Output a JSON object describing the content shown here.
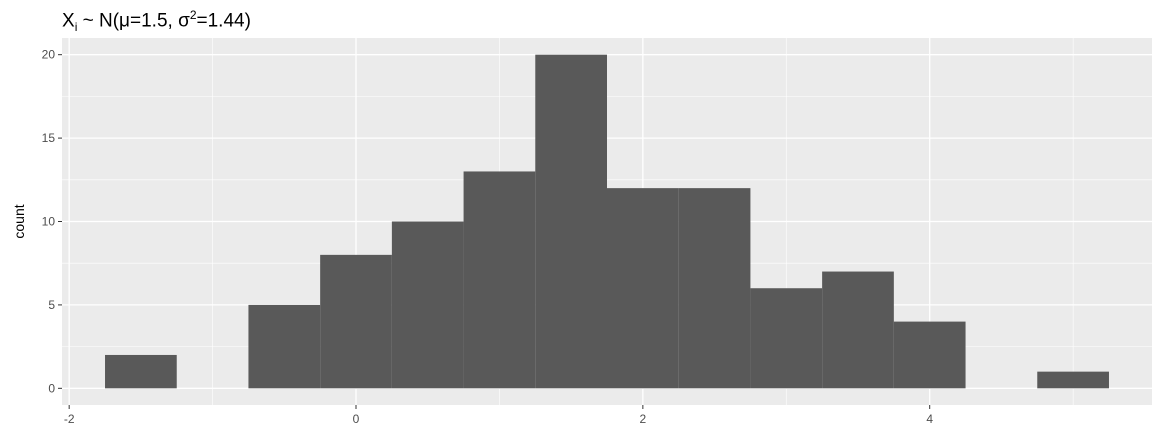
{
  "chart_data": {
    "type": "bar",
    "title": {
      "base": "X",
      "sub": "i",
      "middle": " ~ N(μ=1.5, σ",
      "sup": "2",
      "end": "=1.44)"
    },
    "xlabel": "",
    "ylabel": "count",
    "bin_width": 0.5,
    "bins": [
      {
        "x_start": -1.75,
        "x_end": -1.25,
        "count": 2
      },
      {
        "x_start": -0.75,
        "x_end": -0.25,
        "count": 5
      },
      {
        "x_start": -0.25,
        "x_end": 0.25,
        "count": 8
      },
      {
        "x_start": 0.25,
        "x_end": 0.75,
        "count": 10
      },
      {
        "x_start": 0.75,
        "x_end": 1.25,
        "count": 13
      },
      {
        "x_start": 1.25,
        "x_end": 1.75,
        "count": 20
      },
      {
        "x_start": 1.75,
        "x_end": 2.25,
        "count": 12
      },
      {
        "x_start": 2.25,
        "x_end": 2.75,
        "count": 12
      },
      {
        "x_start": 2.75,
        "x_end": 3.25,
        "count": 6
      },
      {
        "x_start": 3.25,
        "x_end": 3.75,
        "count": 7
      },
      {
        "x_start": 3.75,
        "x_end": 4.25,
        "count": 4
      },
      {
        "x_start": 4.75,
        "x_end": 5.25,
        "count": 1
      }
    ],
    "xlim": [
      -2.05,
      5.55
    ],
    "ylim": [
      -1,
      21
    ],
    "x_ticks": [
      -2,
      0,
      2,
      4
    ],
    "x_tick_labels": [
      "-2",
      "0",
      "2",
      "4"
    ],
    "y_ticks": [
      0,
      5,
      10,
      15,
      20
    ],
    "y_tick_labels": [
      "0",
      "5",
      "10",
      "15",
      "20"
    ],
    "grid": true,
    "colors": {
      "panel_background": "#ebebeb",
      "grid_major": "#ffffff",
      "bar_fill": "#595959",
      "tick": "#333333"
    }
  }
}
